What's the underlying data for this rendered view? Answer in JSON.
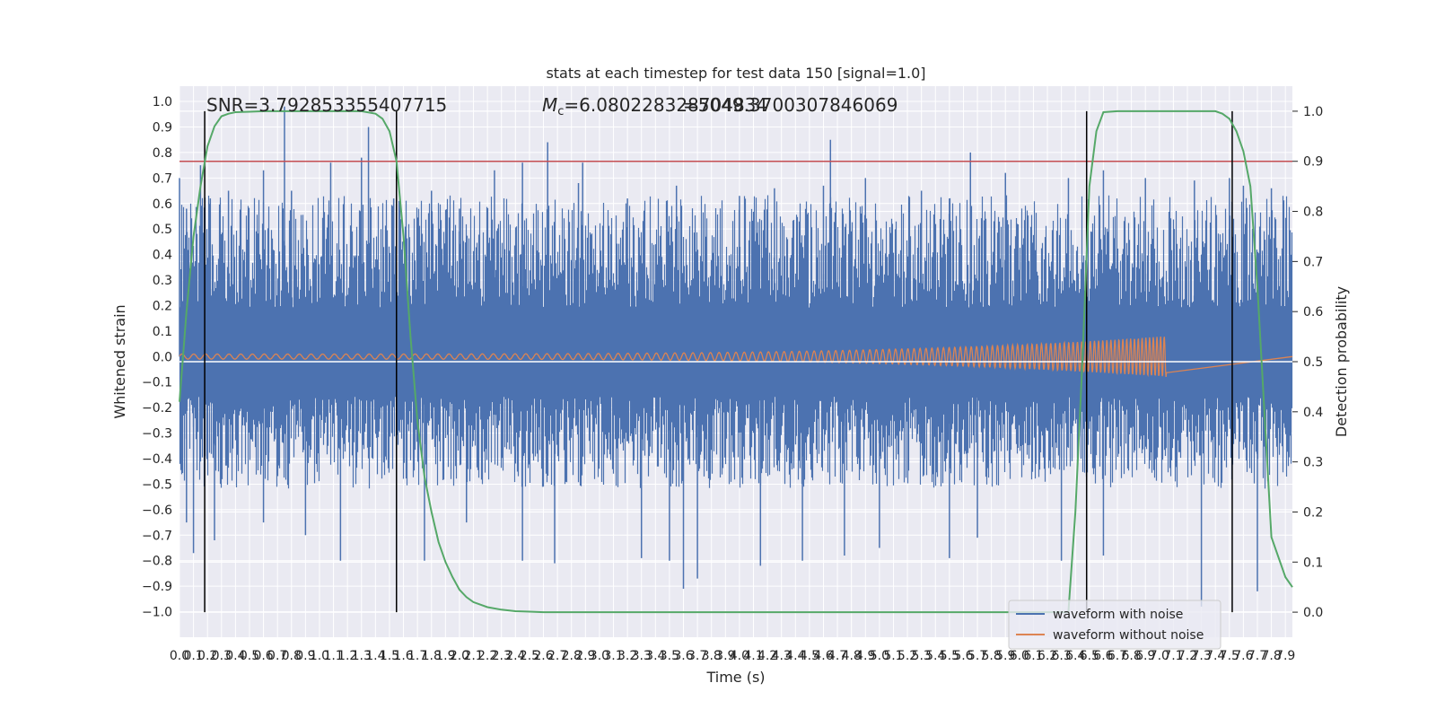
{
  "chart_data": {
    "type": "line",
    "title": "stats at each timestep for test data 150 [signal=1.0]",
    "xlabel": "Time (s)",
    "ylabel": "Whitened strain",
    "y2label": "Detection probability",
    "xlim": [
      0.0,
      7.95
    ],
    "ylim": [
      -1.1,
      1.06
    ],
    "y2lim": [
      -0.05,
      1.05
    ],
    "x_ticks": [
      0.0,
      0.1,
      0.2,
      0.3,
      0.4,
      0.5,
      0.6,
      0.7,
      0.8,
      0.9,
      1.0,
      1.1,
      1.2,
      1.3,
      1.4,
      1.5,
      1.6,
      1.7,
      1.8,
      1.9,
      2.0,
      2.1,
      2.2,
      2.3,
      2.4,
      2.5,
      2.6,
      2.7,
      2.8,
      2.9,
      3.0,
      3.1,
      3.2,
      3.3,
      3.4,
      3.5,
      3.6,
      3.7,
      3.8,
      3.9,
      4.0,
      4.1,
      4.2,
      4.3,
      4.4,
      4.5,
      4.6,
      4.7,
      4.8,
      4.9,
      5.0,
      5.1,
      5.2,
      5.3,
      5.4,
      5.5,
      5.6,
      5.7,
      5.8,
      5.9,
      6.0,
      6.1,
      6.2,
      6.3,
      6.4,
      6.5,
      6.6,
      6.7,
      6.8,
      6.9,
      7.0,
      7.1,
      7.2,
      7.3,
      7.4,
      7.5,
      7.6,
      7.7,
      7.8,
      7.9
    ],
    "y_ticks": [
      -1.0,
      -0.9,
      -0.8,
      -0.7,
      -0.6,
      -0.5,
      -0.4,
      -0.3,
      -0.2,
      -0.1,
      0.0,
      0.1,
      0.2,
      0.3,
      0.4,
      0.5,
      0.6,
      0.7,
      0.8,
      0.9,
      1.0
    ],
    "y2_ticks": [
      0.0,
      0.1,
      0.2,
      0.3,
      0.4,
      0.5,
      0.6,
      0.7,
      0.8,
      0.9,
      1.0
    ],
    "grid": true,
    "legend_position": "lower-right",
    "annotations": {
      "snr": "SNR=3.792853355407715",
      "mc": "M_c=6.080228328704834",
      "mc_overlap": "=5049.3700307846069"
    },
    "series": [
      {
        "name": "waveform with noise",
        "color": "#4c72b0",
        "envelope_pos_typical": 0.55,
        "envelope_neg_typical": -0.45,
        "spikes_pos": [
          [
            0.0,
            0.7
          ],
          [
            0.05,
            0.58
          ],
          [
            0.15,
            0.75
          ],
          [
            0.22,
            0.62
          ],
          [
            0.35,
            0.65
          ],
          [
            0.6,
            0.73
          ],
          [
            0.75,
            0.98
          ],
          [
            0.8,
            0.65
          ],
          [
            1.08,
            0.76
          ],
          [
            1.3,
            0.78
          ],
          [
            1.35,
            0.9
          ],
          [
            1.53,
            0.62
          ],
          [
            1.8,
            0.65
          ],
          [
            2.0,
            0.58
          ],
          [
            2.25,
            0.73
          ],
          [
            2.45,
            0.76
          ],
          [
            2.63,
            0.84
          ],
          [
            2.85,
            0.68
          ],
          [
            2.88,
            0.76
          ],
          [
            3.2,
            0.62
          ],
          [
            3.55,
            0.67
          ],
          [
            4.0,
            0.63
          ],
          [
            4.25,
            0.66
          ],
          [
            4.6,
            0.67
          ],
          [
            4.65,
            0.85
          ],
          [
            4.9,
            0.7
          ],
          [
            5.3,
            0.65
          ],
          [
            5.5,
            0.62
          ],
          [
            5.65,
            0.8
          ],
          [
            5.9,
            0.72
          ],
          [
            6.35,
            0.7
          ],
          [
            6.6,
            0.73
          ],
          [
            6.9,
            0.7
          ],
          [
            7.25,
            0.69
          ],
          [
            7.5,
            0.7
          ],
          [
            7.6,
            0.67
          ],
          [
            7.8,
            0.66
          ]
        ],
        "spikes_neg": [
          [
            0.05,
            -0.65
          ],
          [
            0.1,
            -0.77
          ],
          [
            0.25,
            -0.72
          ],
          [
            0.6,
            -0.65
          ],
          [
            0.9,
            -0.7
          ],
          [
            1.15,
            -0.8
          ],
          [
            1.55,
            -0.84
          ],
          [
            1.75,
            -0.8
          ],
          [
            2.05,
            -0.65
          ],
          [
            2.45,
            -0.8
          ],
          [
            2.68,
            -0.81
          ],
          [
            3.3,
            -0.79
          ],
          [
            3.5,
            -0.8
          ],
          [
            3.6,
            -0.91
          ],
          [
            3.7,
            -0.87
          ],
          [
            4.15,
            -0.82
          ],
          [
            4.45,
            -0.8
          ],
          [
            4.75,
            -0.78
          ],
          [
            5.0,
            -0.75
          ],
          [
            5.5,
            -0.79
          ],
          [
            5.7,
            -0.71
          ],
          [
            6.3,
            -0.8
          ],
          [
            6.6,
            -0.78
          ],
          [
            7.3,
            -0.98
          ],
          [
            7.7,
            -0.92
          ]
        ]
      },
      {
        "name": "waveform without noise",
        "color": "#dd8452",
        "chirp_start_s": 0.0,
        "chirp_end_s": 7.05,
        "amplitude_start": 0.01,
        "amplitude_end": 0.08
      },
      {
        "name": "",
        "color": "#55a868",
        "axis": "y2",
        "x": [
          0.0,
          0.05,
          0.1,
          0.15,
          0.2,
          0.25,
          0.3,
          0.35,
          0.4,
          0.5,
          0.6,
          0.8,
          1.0,
          1.2,
          1.3,
          1.4,
          1.45,
          1.5,
          1.55,
          1.6,
          1.65,
          1.7,
          1.75,
          1.8,
          1.85,
          1.9,
          1.95,
          2.0,
          2.05,
          2.1,
          2.2,
          2.3,
          2.4,
          2.5,
          2.6,
          3.0,
          4.0,
          5.0,
          6.0,
          6.35,
          6.4,
          6.45,
          6.5,
          6.55,
          6.6,
          6.7,
          6.8,
          7.0,
          7.2,
          7.4,
          7.45,
          7.5,
          7.55,
          7.6,
          7.65,
          7.7,
          7.75,
          7.8,
          7.9,
          7.95
        ],
        "values": [
          0.42,
          0.6,
          0.75,
          0.85,
          0.93,
          0.97,
          0.99,
          0.995,
          0.998,
          0.999,
          1.0,
          1.0,
          1.0,
          1.0,
          1.0,
          0.995,
          0.985,
          0.96,
          0.9,
          0.75,
          0.55,
          0.38,
          0.27,
          0.2,
          0.14,
          0.1,
          0.07,
          0.045,
          0.03,
          0.02,
          0.01,
          0.005,
          0.002,
          0.001,
          0.0,
          0.0,
          0.0,
          0.0,
          0.0,
          0.0,
          0.2,
          0.5,
          0.85,
          0.96,
          0.998,
          1.0,
          1.0,
          1.0,
          1.0,
          1.0,
          0.995,
          0.985,
          0.96,
          0.92,
          0.85,
          0.65,
          0.4,
          0.15,
          0.07,
          0.05
        ]
      }
    ],
    "horizontal_lines": [
      {
        "axis": "y2",
        "value": 0.9,
        "color": "#c44e52"
      },
      {
        "axis": "y2",
        "value": 0.5,
        "color": "#ffffff"
      }
    ],
    "vertical_lines_s": [
      0.18,
      1.55,
      6.48,
      7.52
    ]
  }
}
